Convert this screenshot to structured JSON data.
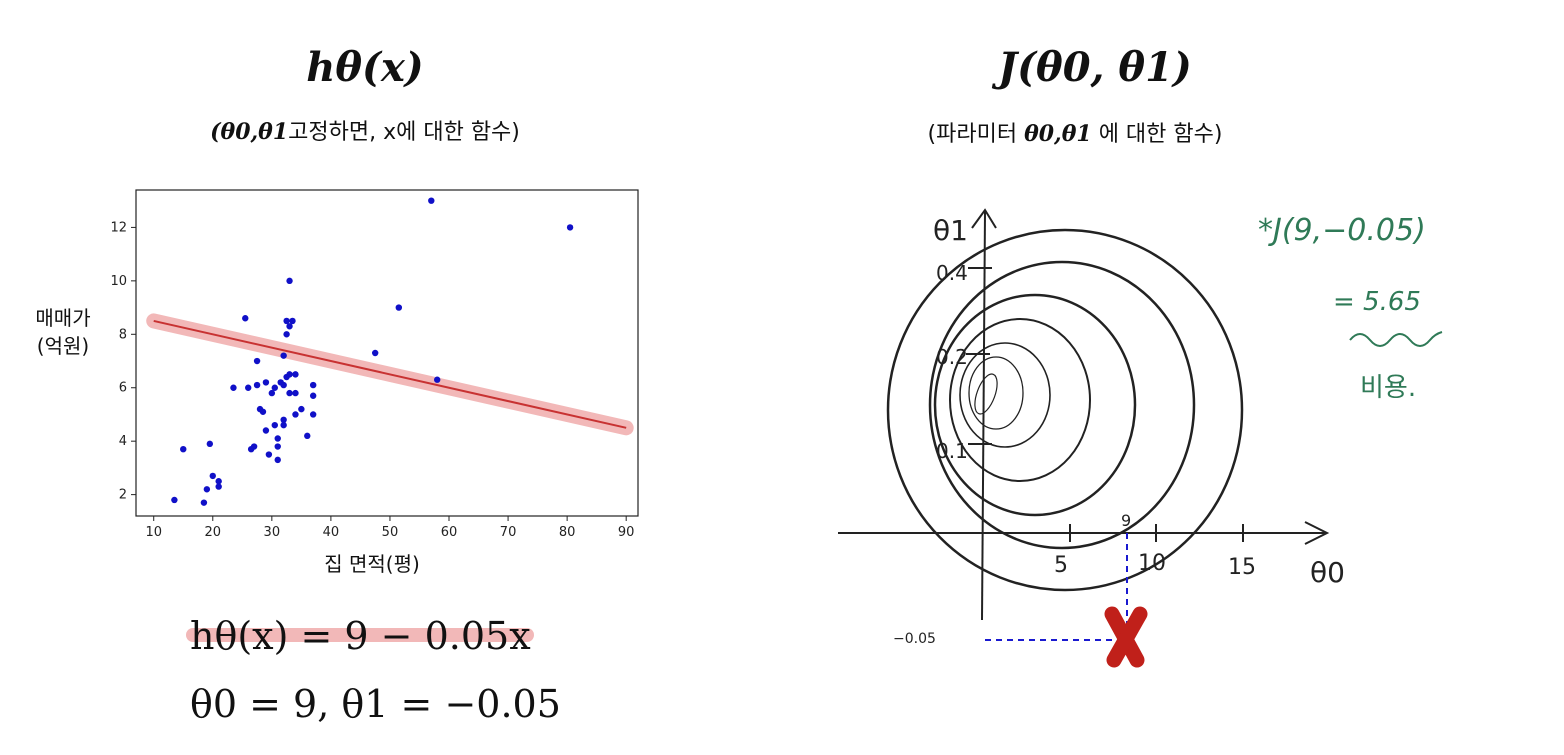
{
  "left": {
    "title": "hθ(x)",
    "subtitle_math": "(θ0,θ1",
    "subtitle_text": "고정하면, x에 대한 함수)",
    "ylabel_line1": "매매가",
    "ylabel_line2": "(억원)",
    "xlabel": "집 면적(평)",
    "equation": "hθ(x) = 9 − 0.05x",
    "params": "θ0 = 9, θ1 = −0.05"
  },
  "right": {
    "title": "J(θ0, θ1)",
    "subtitle_pre": "(파라미터 ",
    "subtitle_math": "θ0,θ1",
    "subtitle_post": " 에 대한 함수)",
    "axis_y_label": "θ1",
    "axis_x_label": "θ0",
    "y_ticks": [
      "0.4",
      "0.2",
      "0.1"
    ],
    "x_ticks": [
      "5",
      "10",
      "15"
    ],
    "x_marker": "9",
    "y_marker": "−0.05",
    "note_line1": "*J(9,−0.05)",
    "note_line2": "= 5.65",
    "note_line3": "비용."
  },
  "colors": {
    "points": "#1010c8",
    "fit_line": "#c83232",
    "highlight": "#f2b8b8",
    "marker": "#c0201a",
    "guide": "#1a1ad0",
    "handwriting": "#2f7a57"
  },
  "chart_data": {
    "type": "scatter",
    "xlabel": "집 면적(평)",
    "ylabel": "매매가 (억원)",
    "xlim": [
      7,
      92
    ],
    "ylim": [
      1.2,
      13.4
    ],
    "xticks": [
      10,
      20,
      30,
      40,
      50,
      60,
      70,
      80,
      90
    ],
    "yticks": [
      2,
      4,
      6,
      8,
      10,
      12
    ],
    "grid": false,
    "points": [
      [
        13.5,
        1.8
      ],
      [
        15,
        3.7
      ],
      [
        18.5,
        1.7
      ],
      [
        19,
        2.2
      ],
      [
        19.5,
        3.9
      ],
      [
        20,
        2.7
      ],
      [
        21,
        2.5
      ],
      [
        21,
        2.3
      ],
      [
        23.5,
        6.0
      ],
      [
        25.5,
        8.6
      ],
      [
        26,
        6.0
      ],
      [
        26.5,
        3.7
      ],
      [
        27,
        3.8
      ],
      [
        27.5,
        7.0
      ],
      [
        27.5,
        6.1
      ],
      [
        28,
        5.2
      ],
      [
        28.5,
        5.1
      ],
      [
        29,
        4.4
      ],
      [
        29,
        6.2
      ],
      [
        29.5,
        3.5
      ],
      [
        30,
        5.8
      ],
      [
        30.5,
        4.6
      ],
      [
        30.5,
        6.0
      ],
      [
        31,
        3.3
      ],
      [
        31,
        3.8
      ],
      [
        31,
        4.1
      ],
      [
        31.5,
        6.2
      ],
      [
        32,
        7.2
      ],
      [
        32,
        6.1
      ],
      [
        32,
        4.6
      ],
      [
        32,
        4.8
      ],
      [
        32.5,
        8.5
      ],
      [
        32.5,
        8.0
      ],
      [
        32.5,
        6.4
      ],
      [
        33,
        8.3
      ],
      [
        33,
        10.0
      ],
      [
        33,
        6.5
      ],
      [
        33,
        5.8
      ],
      [
        33.5,
        8.5
      ],
      [
        34,
        6.5
      ],
      [
        34,
        5.0
      ],
      [
        34,
        5.8
      ],
      [
        35,
        5.2
      ],
      [
        36,
        4.2
      ],
      [
        37,
        6.1
      ],
      [
        37,
        5.7
      ],
      [
        37,
        5.0
      ],
      [
        47.5,
        7.3
      ],
      [
        51.5,
        9.0
      ],
      [
        57,
        13.0
      ],
      [
        58,
        6.3
      ],
      [
        80.5,
        12.0
      ]
    ],
    "fit_line": {
      "x": [
        10,
        90
      ],
      "y": [
        8.5,
        4.5
      ]
    }
  }
}
